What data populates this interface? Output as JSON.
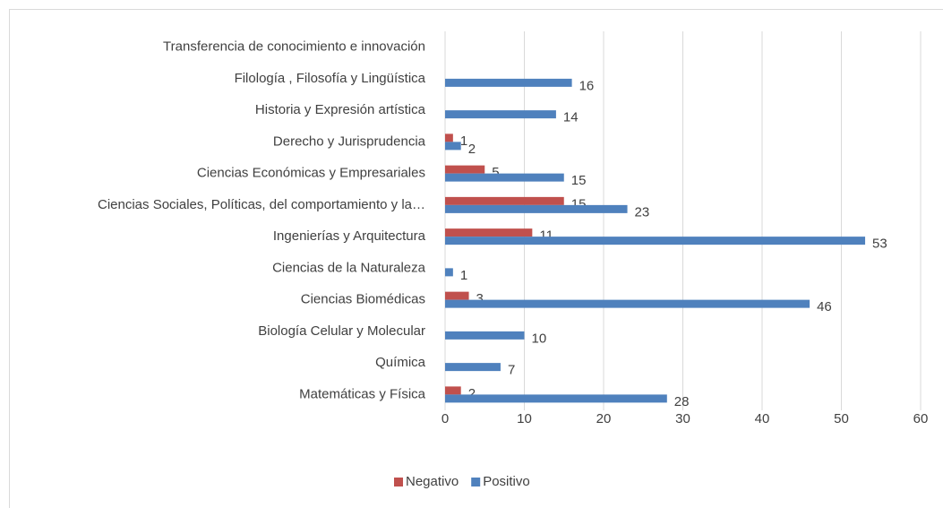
{
  "chart_data": {
    "type": "bar",
    "orientation": "horizontal",
    "categories": [
      "Matemáticas y Física",
      "Química",
      "Biología Celular y Molecular",
      "Ciencias Biomédicas",
      "Ciencias de la Naturaleza",
      "Ingenierías y Arquitectura",
      "Ciencias Sociales, Políticas, del comportamiento y la…",
      "Ciencias Económicas y Empresariales",
      "Derecho y Jurisprudencia",
      "Historia y Expresión artística",
      "Filología , Filosofía y Lingüística",
      "Transferencia de conocimiento e innovación"
    ],
    "series": [
      {
        "name": "Negativo",
        "color": "#c0504d",
        "values": [
          2,
          null,
          null,
          3,
          null,
          11,
          15,
          5,
          1,
          null,
          null,
          null
        ]
      },
      {
        "name": "Positivo",
        "color": "#4f81bd",
        "values": [
          28,
          7,
          10,
          46,
          1,
          53,
          23,
          15,
          2,
          14,
          16,
          null
        ]
      }
    ],
    "xlim": [
      0,
      60
    ],
    "xticks": [
      0,
      10,
      20,
      30,
      40,
      50,
      60
    ],
    "grid": true,
    "legend": "bottom"
  }
}
